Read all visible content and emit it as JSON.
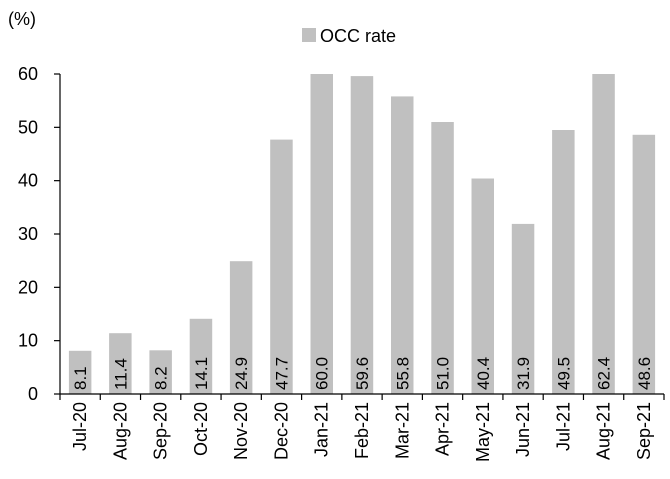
{
  "chart_data": {
    "type": "bar",
    "ylabel": "(%)",
    "ylim": [
      0,
      60
    ],
    "yticks": [
      0,
      10,
      20,
      30,
      40,
      50,
      60
    ],
    "categories": [
      "Jul-20",
      "Aug-20",
      "Sep-20",
      "Oct-20",
      "Nov-20",
      "Dec-20",
      "Jan-21",
      "Feb-21",
      "Mar-21",
      "Apr-21",
      "May-21",
      "Jun-21",
      "Jul-21",
      "Aug-21",
      "Sep-21"
    ],
    "series": [
      {
        "name": "OCC rate",
        "values": [
          8.1,
          11.4,
          8.2,
          14.1,
          24.9,
          47.7,
          60.0,
          59.6,
          55.8,
          51.0,
          40.4,
          31.9,
          49.5,
          62.4,
          48.6
        ],
        "labels": [
          "8.1",
          "11.4",
          "8.2",
          "14.1",
          "24.9",
          "47.7",
          "60.0",
          "59.6",
          "55.8",
          "51.0",
          "40.4",
          "31.9",
          "49.5",
          "62.4",
          "48.6"
        ]
      }
    ],
    "bar_color": "#c0c0c0",
    "legend_position": "top-center",
    "grid": false
  }
}
